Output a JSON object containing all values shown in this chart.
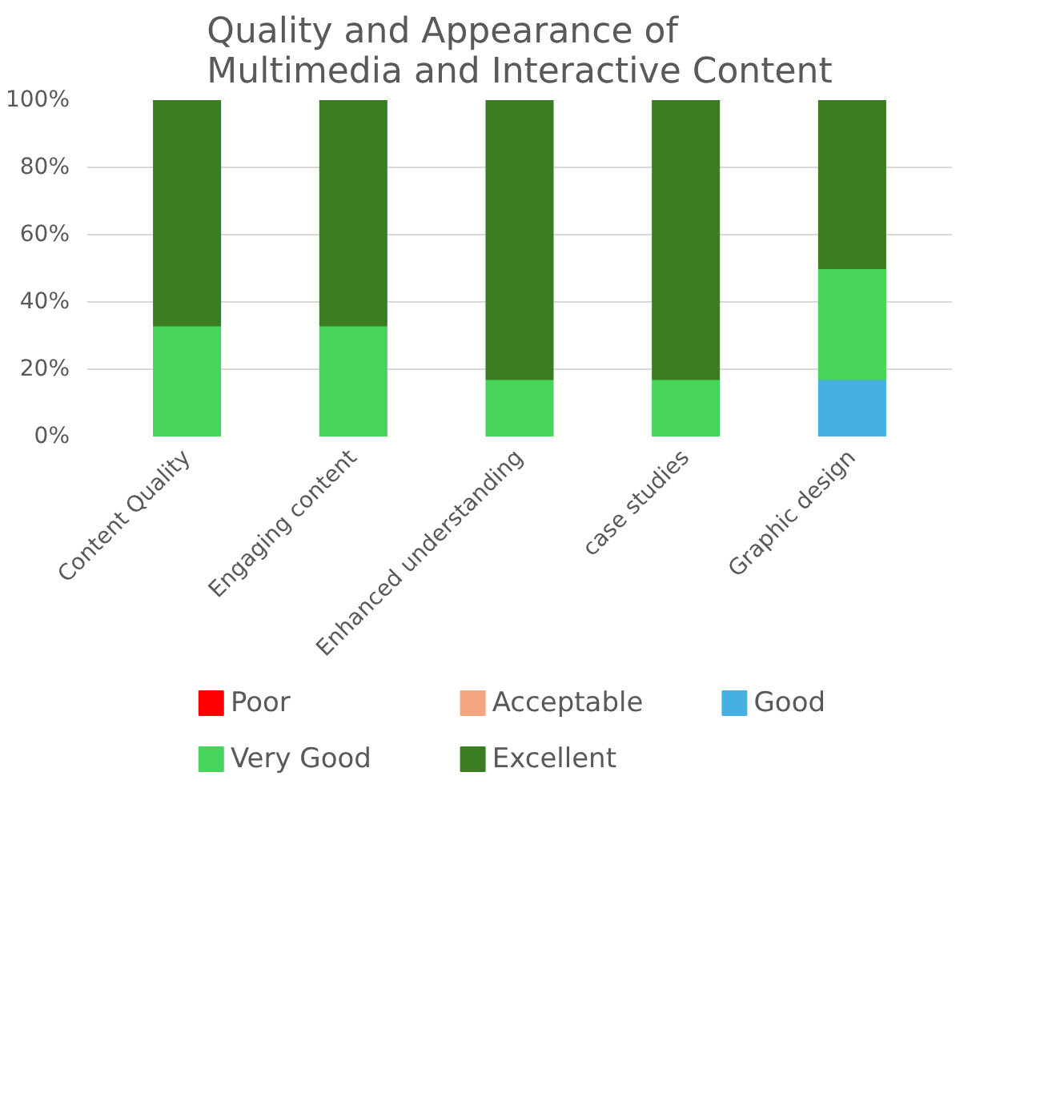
{
  "chart_data": {
    "type": "bar",
    "title": "Quality and Appearance of Multimedia and Interactive Content",
    "stacked": true,
    "categories": [
      "Content Quality",
      "Engaging content",
      "Enhanced understanding",
      "case studies",
      "Graphic design"
    ],
    "series": [
      {
        "name": "Poor",
        "color": "#ff0000",
        "values": [
          0,
          0,
          0,
          0,
          0
        ]
      },
      {
        "name": "Acceptable",
        "color": "#f4a77f",
        "values": [
          0,
          0,
          0,
          0,
          0
        ]
      },
      {
        "name": "Good",
        "color": "#46b1e1",
        "values": [
          0,
          0,
          0,
          0,
          17
        ]
      },
      {
        "name": "Very Good",
        "color": "#47d45a",
        "values": [
          33,
          33,
          17,
          17,
          33
        ]
      },
      {
        "name": "Excellent",
        "color": "#3a7d22",
        "values": [
          67,
          67,
          83,
          83,
          50
        ]
      }
    ],
    "ylim": [
      0,
      100
    ],
    "yticks": [
      {
        "value": 0,
        "label": "0%"
      },
      {
        "value": 20,
        "label": "20%"
      },
      {
        "value": 40,
        "label": "40%"
      },
      {
        "value": 60,
        "label": "60%"
      },
      {
        "value": 80,
        "label": "80%"
      },
      {
        "value": 100,
        "label": "100%"
      }
    ],
    "grid": "y",
    "legend": "bottom"
  }
}
